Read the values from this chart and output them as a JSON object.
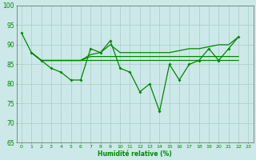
{
  "xlabel": "Humidité relative (%)",
  "xlim": [
    -0.5,
    23.5
  ],
  "ylim": [
    65,
    100
  ],
  "yticks": [
    65,
    70,
    75,
    80,
    85,
    90,
    95,
    100
  ],
  "xticks": [
    0,
    1,
    2,
    3,
    4,
    5,
    6,
    7,
    8,
    9,
    10,
    11,
    12,
    13,
    14,
    15,
    16,
    17,
    18,
    19,
    20,
    21,
    22,
    23
  ],
  "background_color": "#cce8e8",
  "grid_color": "#aacccc",
  "line_color": "#008800",
  "line_width": 0.9,
  "marker_size": 2.0,
  "series": [
    [
      93,
      88,
      86,
      84,
      83,
      81,
      81,
      89,
      88,
      91,
      84,
      83,
      78,
      80,
      73,
      85,
      81,
      85,
      86,
      89,
      86,
      89,
      92,
      null
    ],
    [
      null,
      88,
      86,
      null,
      null,
      null,
      86,
      87,
      87,
      null,
      87,
      87,
      87,
      87,
      87,
      87,
      87,
      87,
      87,
      87,
      87,
      87,
      87,
      null
    ],
    [
      null,
      88,
      86,
      null,
      null,
      null,
      86,
      86,
      86,
      null,
      86,
      86,
      86,
      86,
      86,
      86,
      86,
      86,
      86,
      86,
      86,
      86,
      86,
      null
    ],
    [
      null,
      88,
      86,
      null,
      null,
      null,
      86,
      87.5,
      88,
      90,
      88,
      88,
      88,
      88,
      88,
      88,
      88.5,
      89,
      89,
      89.5,
      90,
      90,
      92,
      null
    ]
  ]
}
